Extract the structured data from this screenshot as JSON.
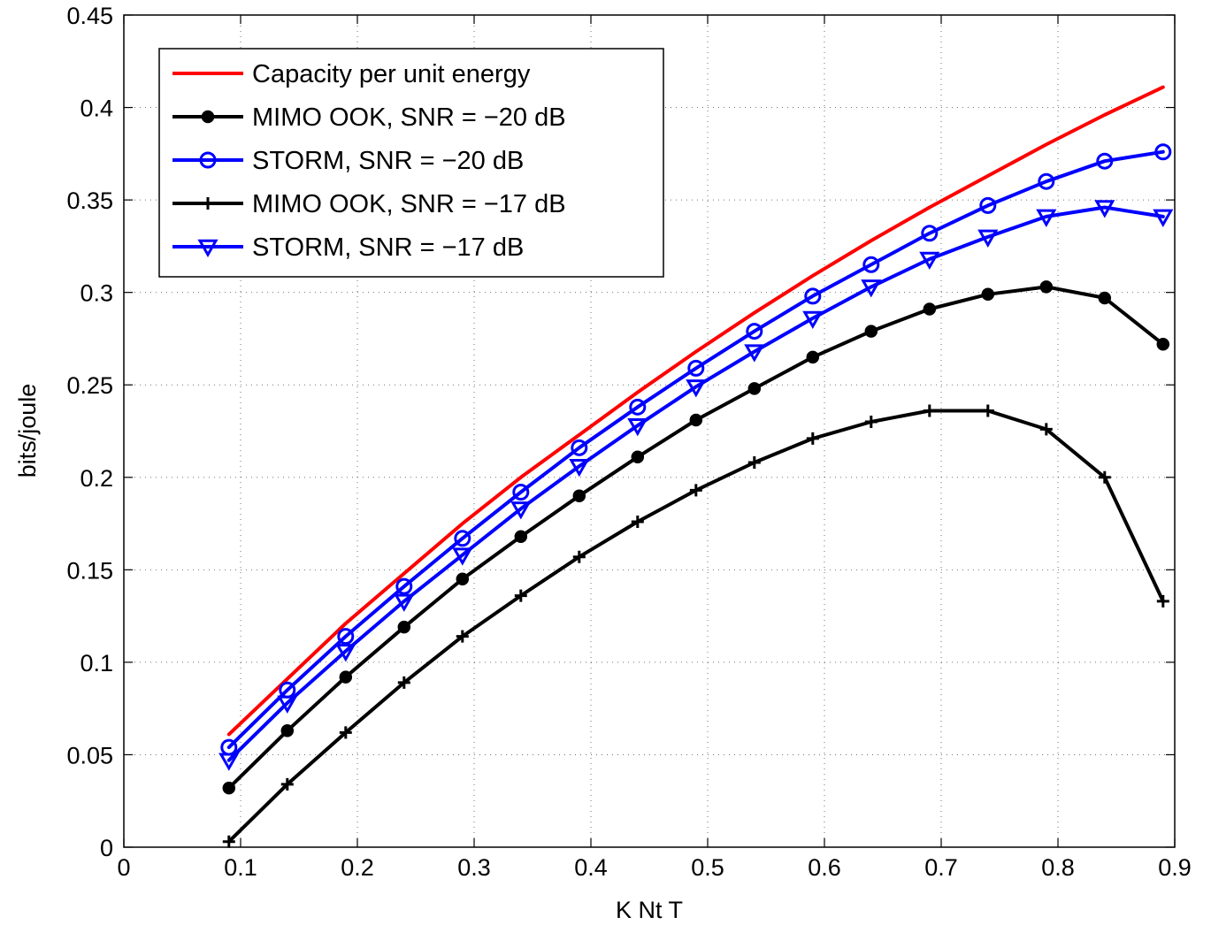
{
  "chart_data": {
    "type": "line",
    "title": "",
    "xlabel": "K Nt T",
    "ylabel": "bits/joule",
    "xlim": [
      0,
      0.9
    ],
    "ylim": [
      0,
      0.45
    ],
    "xticks": [
      0,
      0.1,
      0.2,
      0.3,
      0.4,
      0.5,
      0.6,
      0.7,
      0.8,
      0.9
    ],
    "xtick_labels": [
      "0",
      "0.1",
      "0.2",
      "0.3",
      "0.4",
      "0.5",
      "0.6",
      "0.7",
      "0.8",
      "0.9"
    ],
    "yticks": [
      0,
      0.05,
      0.1,
      0.15,
      0.2,
      0.25,
      0.3,
      0.35,
      0.4,
      0.45
    ],
    "ytick_labels": [
      "0",
      "0.05",
      "0.1",
      "0.15",
      "0.2",
      "0.25",
      "0.3",
      "0.35",
      "0.4",
      "0.45"
    ],
    "grid": true,
    "legend_position": "top-left",
    "x": [
      0.09,
      0.14,
      0.19,
      0.24,
      0.29,
      0.34,
      0.39,
      0.44,
      0.49,
      0.54,
      0.59,
      0.64,
      0.69,
      0.74,
      0.79,
      0.84,
      0.89
    ],
    "series": [
      {
        "name": "Capacity per unit energy",
        "color": "#ff0000",
        "marker": "none",
        "values": [
          0.061,
          0.091,
          0.121,
          0.148,
          0.175,
          0.2,
          0.223,
          0.246,
          0.268,
          0.289,
          0.309,
          0.328,
          0.346,
          0.363,
          0.38,
          0.396,
          0.411
        ]
      },
      {
        "name": "MIMO OOK, SNR = −20 dB",
        "color": "#000000",
        "marker": "filled-circle",
        "values": [
          0.032,
          0.063,
          0.092,
          0.119,
          0.145,
          0.168,
          0.19,
          0.211,
          0.231,
          0.248,
          0.265,
          0.279,
          0.291,
          0.299,
          0.303,
          0.297,
          0.272
        ]
      },
      {
        "name": "STORM, SNR = −20 dB",
        "color": "#0000ff",
        "marker": "open-circle",
        "values": [
          0.054,
          0.085,
          0.114,
          0.141,
          0.167,
          0.192,
          0.216,
          0.238,
          0.259,
          0.279,
          0.298,
          0.315,
          0.332,
          0.347,
          0.36,
          0.371,
          0.376
        ]
      },
      {
        "name": "MIMO OOK, SNR = −17 dB",
        "color": "#000000",
        "marker": "plus",
        "values": [
          0.003,
          0.034,
          0.062,
          0.089,
          0.114,
          0.136,
          0.157,
          0.176,
          0.193,
          0.208,
          0.221,
          0.23,
          0.236,
          0.236,
          0.226,
          0.2,
          0.133
        ]
      },
      {
        "name": "STORM, SNR = −17 dB",
        "color": "#0000ff",
        "marker": "open-triangle-down",
        "values": [
          0.047,
          0.078,
          0.106,
          0.133,
          0.158,
          0.183,
          0.206,
          0.228,
          0.249,
          0.268,
          0.286,
          0.303,
          0.318,
          0.33,
          0.341,
          0.346,
          0.341
        ]
      }
    ]
  }
}
